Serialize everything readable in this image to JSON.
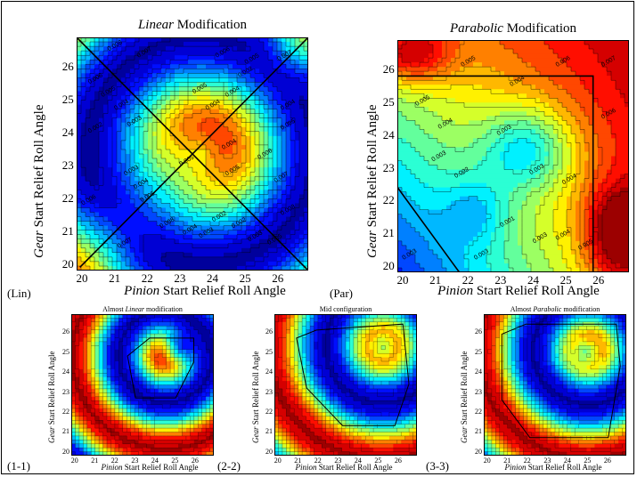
{
  "chart_data": [
    {
      "id": "lin",
      "type": "heatmap",
      "panel_label": "(Lin)",
      "title_em": "Linear",
      "title_rest": " Modification",
      "ylabel_em": "Gear",
      "ylabel_rest": " Start Relief Roll Angle",
      "xlabel_em": "Pinion",
      "xlabel_rest": " Start Relief Roll Angle",
      "xlim": [
        19.8,
        26.9
      ],
      "ylim": [
        19.8,
        26.9
      ],
      "x_ticks": [
        20,
        21,
        22,
        23,
        24,
        25,
        26
      ],
      "y_ticks": [
        20,
        21,
        22,
        23,
        24,
        25,
        26
      ],
      "colormap": "jet",
      "value_range": [
        0.001,
        0.009
      ],
      "boundary": [
        [
          19.8,
          26.9
        ],
        [
          26.9,
          19.8
        ]
      ],
      "boundary2": [
        [
          19.9,
          19.9
        ],
        [
          26.9,
          26.9
        ]
      ],
      "contour_labels": [
        {
          "x": 21.0,
          "y": 26.6,
          "t": "0.008"
        },
        {
          "x": 21.9,
          "y": 26.4,
          "t": "0.007"
        },
        {
          "x": 20.4,
          "y": 25.6,
          "t": "0.006"
        },
        {
          "x": 20.8,
          "y": 25.2,
          "t": "0.005"
        },
        {
          "x": 21.2,
          "y": 24.8,
          "t": "0.004"
        },
        {
          "x": 21.6,
          "y": 24.3,
          "t": "0.003"
        },
        {
          "x": 20.4,
          "y": 24.1,
          "t": "0.002"
        },
        {
          "x": 21.5,
          "y": 22.8,
          "t": "0.003"
        },
        {
          "x": 21.8,
          "y": 22.4,
          "t": "0.004"
        },
        {
          "x": 22.0,
          "y": 22.0,
          "t": "0.005"
        },
        {
          "x": 20.2,
          "y": 21.9,
          "t": "0.006"
        },
        {
          "x": 21.3,
          "y": 20.6,
          "t": "0.007"
        },
        {
          "x": 22.6,
          "y": 21.2,
          "t": "0.008"
        },
        {
          "x": 23.3,
          "y": 21.0,
          "t": "0.004"
        },
        {
          "x": 23.8,
          "y": 20.9,
          "t": "0.003"
        },
        {
          "x": 24.2,
          "y": 21.4,
          "t": "0.002"
        },
        {
          "x": 24.8,
          "y": 21.2,
          "t": "0.002"
        },
        {
          "x": 25.3,
          "y": 20.8,
          "t": "0.003"
        },
        {
          "x": 25.9,
          "y": 20.7,
          "t": "0.005"
        },
        {
          "x": 26.3,
          "y": 21.6,
          "t": "0.008"
        },
        {
          "x": 26.1,
          "y": 22.6,
          "t": "0.007"
        },
        {
          "x": 25.6,
          "y": 23.3,
          "t": "0.006"
        },
        {
          "x": 24.6,
          "y": 22.8,
          "t": "0.005"
        },
        {
          "x": 24.5,
          "y": 23.6,
          "t": "0.004"
        },
        {
          "x": 23.2,
          "y": 23.1,
          "t": "0.005"
        },
        {
          "x": 23.6,
          "y": 25.3,
          "t": "0.005"
        },
        {
          "x": 24.0,
          "y": 24.8,
          "t": "0.004"
        },
        {
          "x": 24.6,
          "y": 25.2,
          "t": "0.004"
        },
        {
          "x": 25.0,
          "y": 25.8,
          "t": "0.002"
        },
        {
          "x": 25.2,
          "y": 26.2,
          "t": "0.005"
        },
        {
          "x": 24.3,
          "y": 26.4,
          "t": "0.006"
        },
        {
          "x": 26.2,
          "y": 26.3,
          "t": "0.007"
        },
        {
          "x": 26.3,
          "y": 24.8,
          "t": "0.004"
        },
        {
          "x": 26.3,
          "y": 24.2,
          "t": "0.005"
        }
      ]
    },
    {
      "id": "par",
      "type": "heatmap",
      "panel_label": "(Par)",
      "title_em": "Parabolic",
      "title_rest": " Modification",
      "ylabel_em": "Gear",
      "ylabel_rest": " Start Relief Roll Angle",
      "xlabel_em": "Pinion",
      "xlabel_rest": " Start Relief Roll Angle",
      "xlim": [
        19.8,
        26.9
      ],
      "ylim": [
        19.8,
        26.9
      ],
      "x_ticks": [
        20,
        21,
        22,
        23,
        24,
        25,
        26
      ],
      "y_ticks": [
        20,
        21,
        22,
        23,
        24,
        25,
        26
      ],
      "colormap": "jet",
      "value_range": [
        0.001,
        0.009
      ],
      "boundary": [
        [
          19.8,
          25.8
        ],
        [
          25.8,
          25.8
        ],
        [
          25.8,
          19.8
        ],
        [
          21.7,
          19.8
        ],
        [
          19.8,
          22.4
        ]
      ],
      "contour_labels": [
        {
          "x": 20.6,
          "y": 25.0,
          "t": "0.005"
        },
        {
          "x": 21.3,
          "y": 24.3,
          "t": "0.004"
        },
        {
          "x": 21.1,
          "y": 23.3,
          "t": "0.003"
        },
        {
          "x": 21.8,
          "y": 22.8,
          "t": "0.002"
        },
        {
          "x": 22.0,
          "y": 26.2,
          "t": "0.005"
        },
        {
          "x": 23.5,
          "y": 25.6,
          "t": "0.004"
        },
        {
          "x": 23.1,
          "y": 24.1,
          "t": "0.003"
        },
        {
          "x": 24.1,
          "y": 22.9,
          "t": "0.003"
        },
        {
          "x": 25.1,
          "y": 22.6,
          "t": "0.004"
        },
        {
          "x": 24.9,
          "y": 26.2,
          "t": "0.006"
        },
        {
          "x": 26.3,
          "y": 26.2,
          "t": "0.007"
        },
        {
          "x": 26.3,
          "y": 24.6,
          "t": "0.006"
        },
        {
          "x": 23.2,
          "y": 21.3,
          "t": "0.001"
        },
        {
          "x": 24.2,
          "y": 20.8,
          "t": "0.003"
        },
        {
          "x": 24.9,
          "y": 20.9,
          "t": "0.004"
        },
        {
          "x": 25.6,
          "y": 20.6,
          "t": "0.005"
        },
        {
          "x": 22.4,
          "y": 20.3,
          "t": "0.003"
        },
        {
          "x": 20.2,
          "y": 20.3,
          "t": "0.003"
        }
      ]
    },
    {
      "id": "s11",
      "type": "heatmap",
      "panel_label": "(1-1)",
      "title_em": "",
      "title_pre": "Almost ",
      "title_mid": "Linear",
      "title_rest": " modification",
      "ylabel_em": "Gear",
      "ylabel_rest": " Start Relief Roll Angle",
      "xlabel_em": "Pinion",
      "xlabel_rest": " Start Relief Roll Angle",
      "xlim": [
        19.8,
        26.9
      ],
      "ylim": [
        19.8,
        26.9
      ],
      "x_ticks": [
        20,
        21,
        22,
        23,
        24,
        25,
        26
      ],
      "y_ticks": [
        20,
        21,
        22,
        23,
        24,
        25,
        26
      ],
      "colormap": "jet",
      "boundary": [
        [
          22.6,
          24.8
        ],
        [
          23.7,
          25.7
        ],
        [
          25.9,
          25.7
        ],
        [
          25.9,
          24.5
        ],
        [
          25.0,
          22.7
        ],
        [
          23.0,
          22.7
        ]
      ]
    },
    {
      "id": "s22",
      "type": "heatmap",
      "panel_label": "(2-2)",
      "title_pre": "",
      "title_mid": "",
      "title_rest": "Mid configuration",
      "ylabel_em": "Gear",
      "ylabel_rest": " Start Relief Roll Angle",
      "xlabel_em": "Pinion",
      "xlabel_rest": " Start Relief Roll Angle",
      "xlim": [
        19.8,
        26.9
      ],
      "ylim": [
        19.8,
        26.9
      ],
      "x_ticks": [
        20,
        21,
        22,
        23,
        24,
        25,
        26
      ],
      "y_ticks": [
        20,
        21,
        22,
        23,
        24,
        25,
        26
      ],
      "colormap": "jet",
      "boundary": [
        [
          20.9,
          25.7
        ],
        [
          21.9,
          26.1
        ],
        [
          26.2,
          26.4
        ],
        [
          26.5,
          23.4
        ],
        [
          25.8,
          21.3
        ],
        [
          23.2,
          21.3
        ],
        [
          21.4,
          23.2
        ]
      ]
    },
    {
      "id": "s33",
      "type": "heatmap",
      "panel_label": "(3-3)",
      "title_pre": "Almost ",
      "title_mid": "Parabolic",
      "title_rest": " modification",
      "ylabel_em": "Gear",
      "ylabel_rest": " Start Relief Roll Angle",
      "xlabel_em": "Pinion",
      "xlabel_rest": " Start Relief Roll Angle",
      "xlim": [
        19.8,
        26.9
      ],
      "ylim": [
        19.8,
        26.9
      ],
      "x_ticks": [
        20,
        21,
        22,
        23,
        24,
        25,
        26
      ],
      "y_ticks": [
        20,
        21,
        22,
        23,
        24,
        25,
        26
      ],
      "colormap": "jet",
      "boundary": [
        [
          20.7,
          25.9
        ],
        [
          21.9,
          26.4
        ],
        [
          26.4,
          26.4
        ],
        [
          26.6,
          24.3
        ],
        [
          26.0,
          20.7
        ],
        [
          22.1,
          20.7
        ],
        [
          20.7,
          22.6
        ]
      ]
    }
  ]
}
